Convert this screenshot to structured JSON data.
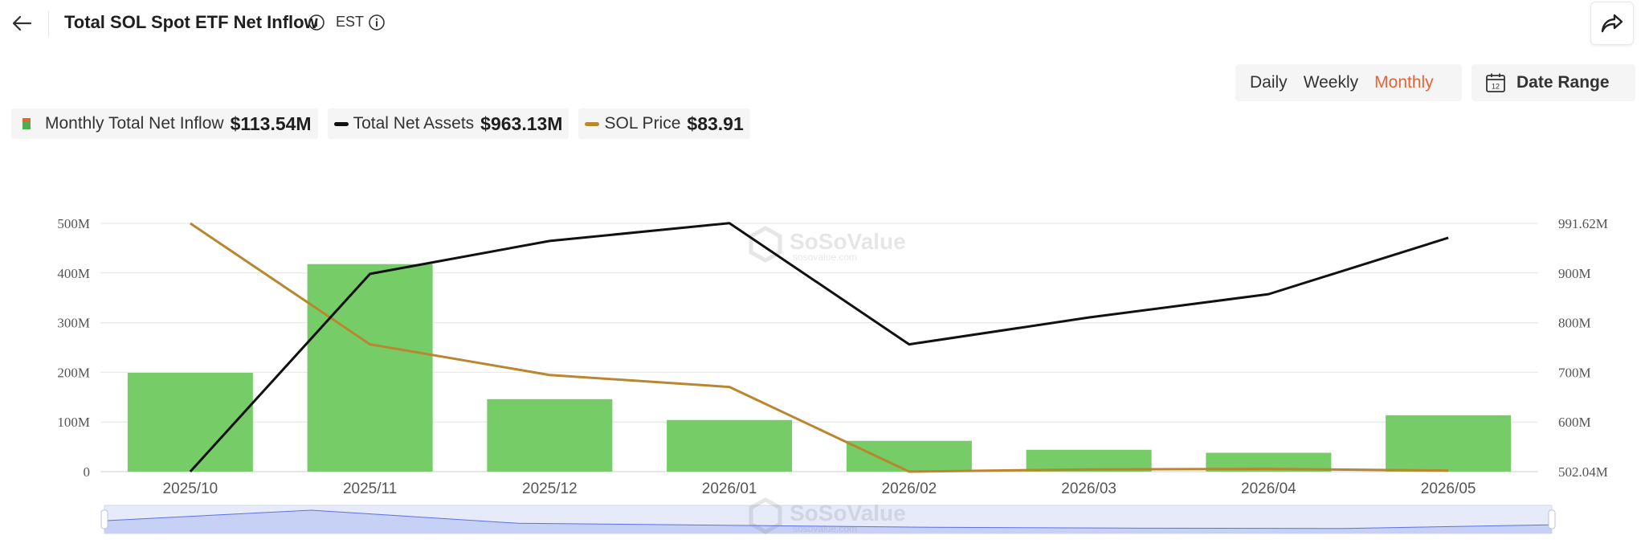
{
  "header": {
    "title": "Total SOL Spot ETF Net Inflow",
    "timezone": "EST"
  },
  "periods": {
    "daily": "Daily",
    "weekly": "Weekly",
    "monthly": "Monthly",
    "active": "Monthly"
  },
  "date_range_label": "Date Range",
  "legend": {
    "inflow_label": "Monthly Total Net Inflow",
    "inflow_value": "$113.54M",
    "assets_label": "Total Net Assets",
    "assets_value": "$963.13M",
    "price_label": "SOL Price",
    "price_value": "$83.91"
  },
  "watermark": {
    "brand": "SoSoValue",
    "site": "sosovalue.com"
  },
  "colors": {
    "bar": "#76cc67",
    "bar_swatch_top": "#e2643a",
    "assets_line": "#111111",
    "price_line": "#b8872f",
    "active_period": "#e2643a",
    "navigator_fill": "#c7d0f5",
    "navigator_line": "#5b72e6"
  },
  "chart_data": {
    "type": "bar",
    "categories": [
      "2025/10",
      "2025/11",
      "2025/12",
      "2026/01",
      "2026/02",
      "2026/03",
      "2026/04",
      "2026/05"
    ],
    "series": [
      {
        "name": "Monthly Total Net Inflow",
        "type": "bar",
        "axis": "left",
        "values": [
          199,
          418,
          146,
          104,
          62,
          44,
          38,
          113.54
        ]
      },
      {
        "name": "Total Net Assets",
        "type": "line",
        "axis": "right",
        "values": [
          502,
          892,
          957,
          992,
          753,
          806,
          852,
          963.13
        ]
      },
      {
        "name": "SOL Price",
        "type": "line",
        "axis": "price",
        "values": [
          229,
          158,
          140,
          133,
          83.3,
          84.6,
          84.9,
          83.91
        ]
      }
    ],
    "left_axis": {
      "ticks": [
        "0",
        "100M",
        "200M",
        "300M",
        "400M",
        "500M"
      ],
      "range": [
        0,
        500
      ]
    },
    "right_axis": {
      "ticks": [
        "502.04M",
        "600M",
        "700M",
        "800M",
        "900M",
        "991.62M"
      ],
      "range": [
        502.04,
        991.62
      ]
    },
    "price_axis_range": [
      83.3,
      229
    ],
    "grid": true
  }
}
